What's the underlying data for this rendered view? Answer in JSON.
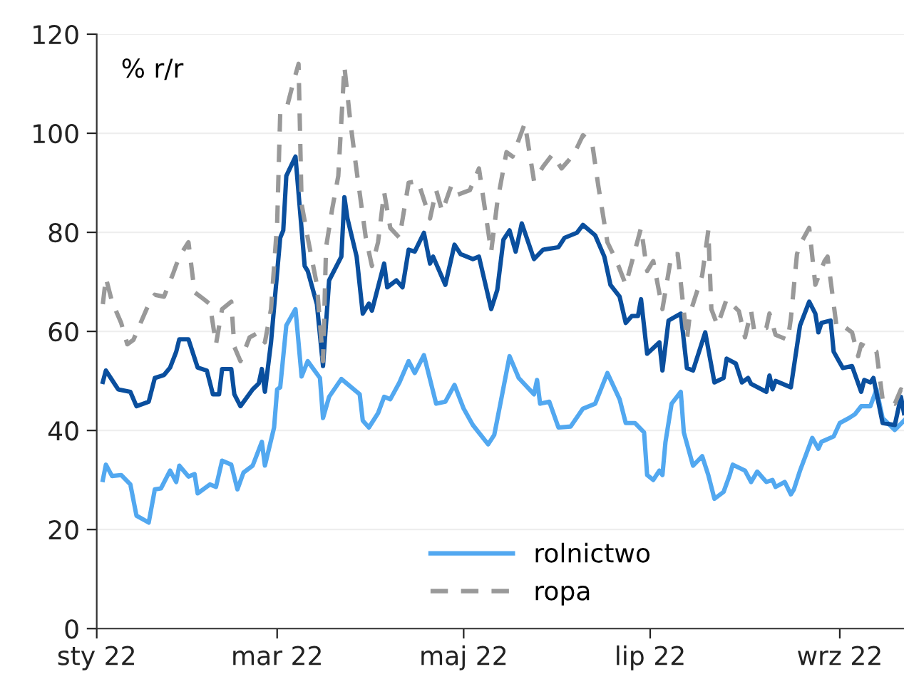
{
  "chart_data": {
    "type": "line",
    "ylabel": "% r/r",
    "xlim": [
      "2022-01-01",
      "2022-09-22"
    ],
    "ylim": [
      0,
      120
    ],
    "yticks": [
      0,
      20,
      40,
      60,
      80,
      100,
      120
    ],
    "xticks": [
      {
        "value": "2022-01-01",
        "label": "sty 22"
      },
      {
        "value": "2022-03-01",
        "label": "mar 22"
      },
      {
        "value": "2022-05-01",
        "label": "maj 22"
      },
      {
        "value": "2022-07-01",
        "label": "lip 22"
      },
      {
        "value": "2022-09-01",
        "label": "wrz 22"
      }
    ],
    "grid": "y",
    "legend": "bottom",
    "series": [
      {
        "name": "rolnictwo",
        "color": "#52a8f0",
        "line_style": "solid",
        "x": [
          "2022-01-03",
          "2022-01-04",
          "2022-01-06",
          "2022-01-09",
          "2022-01-12",
          "2022-01-14",
          "2022-01-18",
          "2022-01-20",
          "2022-01-22",
          "2022-01-25",
          "2022-01-27",
          "2022-01-28",
          "2022-01-31",
          "2022-02-02",
          "2022-02-03",
          "2022-02-07",
          "2022-02-09",
          "2022-02-11",
          "2022-02-14",
          "2022-02-16",
          "2022-02-18",
          "2022-02-21",
          "2022-02-24",
          "2022-02-25",
          "2022-02-28",
          "2022-03-01",
          "2022-03-02",
          "2022-03-04",
          "2022-03-07",
          "2022-03-09",
          "2022-03-11",
          "2022-03-15",
          "2022-03-16",
          "2022-03-18",
          "2022-03-22",
          "2022-03-28",
          "2022-03-29",
          "2022-03-31",
          "2022-04-03",
          "2022-04-05",
          "2022-04-07",
          "2022-04-10",
          "2022-04-13",
          "2022-04-15",
          "2022-04-18",
          "2022-04-22",
          "2022-04-25",
          "2022-04-28",
          "2022-05-01",
          "2022-05-04",
          "2022-05-09",
          "2022-05-11",
          "2022-05-13",
          "2022-05-16",
          "2022-05-19",
          "2022-05-24",
          "2022-05-25",
          "2022-05-26",
          "2022-05-29",
          "2022-06-01",
          "2022-06-05",
          "2022-06-09",
          "2022-06-13",
          "2022-06-17",
          "2022-06-21",
          "2022-06-23",
          "2022-06-26",
          "2022-06-29",
          "2022-06-30",
          "2022-07-02",
          "2022-07-04",
          "2022-07-05",
          "2022-07-06",
          "2022-07-08",
          "2022-07-11",
          "2022-07-12",
          "2022-07-15",
          "2022-07-18",
          "2022-07-20",
          "2022-07-22",
          "2022-07-25",
          "2022-07-27",
          "2022-07-28",
          "2022-08-01",
          "2022-08-03",
          "2022-08-05",
          "2022-08-08",
          "2022-08-10",
          "2022-08-11",
          "2022-08-14",
          "2022-08-16",
          "2022-08-17",
          "2022-08-19",
          "2022-08-23",
          "2022-08-25",
          "2022-08-26",
          "2022-08-30",
          "2022-09-01",
          "2022-09-04",
          "2022-09-06",
          "2022-09-08",
          "2022-09-11",
          "2022-09-13",
          "2022-09-15",
          "2022-09-19",
          "2022-09-22"
        ],
        "values": [
          30.0,
          33.1,
          30.8,
          31.0,
          29.1,
          22.8,
          21.4,
          28.1,
          28.3,
          31.9,
          29.6,
          32.9,
          30.7,
          31.2,
          27.3,
          29.1,
          28.6,
          33.9,
          33.1,
          28.1,
          31.5,
          32.9,
          37.7,
          32.9,
          40.6,
          48.3,
          48.7,
          61.2,
          64.5,
          50.9,
          54.0,
          50.6,
          42.5,
          46.8,
          50.4,
          47.3,
          42.0,
          40.6,
          43.5,
          46.8,
          46.3,
          49.7,
          54.0,
          51.6,
          55.2,
          45.4,
          45.8,
          49.2,
          44.4,
          41.1,
          37.2,
          39.1,
          45.4,
          55.0,
          50.6,
          47.3,
          50.2,
          45.4,
          45.8,
          40.6,
          40.8,
          44.4,
          45.4,
          51.6,
          46.3,
          41.5,
          41.5,
          39.6,
          31.0,
          30.0,
          31.9,
          31.0,
          37.7,
          45.4,
          47.8,
          39.6,
          32.9,
          34.8,
          31.0,
          26.2,
          27.6,
          31.0,
          33.1,
          31.9,
          29.6,
          31.7,
          29.6,
          30.0,
          28.6,
          29.6,
          27.1,
          28.1,
          31.9,
          38.5,
          36.3,
          37.7,
          38.8,
          41.5,
          42.5,
          43.3,
          44.9,
          44.9,
          48.3,
          42.5,
          40.1,
          42.0
        ]
      },
      {
        "color": "#0a4f9e",
        "line_style": "solid",
        "x": [
          "2022-01-03",
          "2022-01-04",
          "2022-01-06",
          "2022-01-08",
          "2022-01-12",
          "2022-01-14",
          "2022-01-18",
          "2022-01-20",
          "2022-01-23",
          "2022-01-25",
          "2022-01-27",
          "2022-01-28",
          "2022-01-31",
          "2022-02-03",
          "2022-02-06",
          "2022-02-08",
          "2022-02-10",
          "2022-02-11",
          "2022-02-14",
          "2022-02-15",
          "2022-02-17",
          "2022-02-21",
          "2022-02-23",
          "2022-02-24",
          "2022-02-25",
          "2022-02-27",
          "2022-03-02",
          "2022-03-03",
          "2022-03-04",
          "2022-03-07",
          "2022-03-10",
          "2022-03-11",
          "2022-03-14",
          "2022-03-16",
          "2022-03-18",
          "2022-03-22",
          "2022-03-23",
          "2022-03-24",
          "2022-03-27",
          "2022-03-29",
          "2022-03-31",
          "2022-04-01",
          "2022-04-05",
          "2022-04-06",
          "2022-04-09",
          "2022-04-11",
          "2022-04-13",
          "2022-04-15",
          "2022-04-18",
          "2022-04-20",
          "2022-04-21",
          "2022-04-25",
          "2022-04-28",
          "2022-04-30",
          "2022-05-04",
          "2022-05-06",
          "2022-05-10",
          "2022-05-12",
          "2022-05-14",
          "2022-05-16",
          "2022-05-18",
          "2022-05-20",
          "2022-05-24",
          "2022-05-27",
          "2022-06-01",
          "2022-06-03",
          "2022-06-07",
          "2022-06-09",
          "2022-06-13",
          "2022-06-16",
          "2022-06-18",
          "2022-06-21",
          "2022-06-23",
          "2022-06-25",
          "2022-06-27",
          "2022-06-28",
          "2022-06-30",
          "2022-07-04",
          "2022-07-05",
          "2022-07-07",
          "2022-07-11",
          "2022-07-13",
          "2022-07-15",
          "2022-07-19",
          "2022-07-22",
          "2022-07-25",
          "2022-07-26",
          "2022-07-29",
          "2022-07-31",
          "2022-08-02",
          "2022-08-03",
          "2022-08-08",
          "2022-08-09",
          "2022-08-10",
          "2022-08-11",
          "2022-08-16",
          "2022-08-19",
          "2022-08-22",
          "2022-08-24",
          "2022-08-25",
          "2022-08-26",
          "2022-08-29",
          "2022-08-30",
          "2022-09-02",
          "2022-09-05",
          "2022-09-08",
          "2022-09-09",
          "2022-09-11",
          "2022-09-12",
          "2022-09-15",
          "2022-09-19",
          "2022-09-21",
          "2022-09-22"
        ],
        "values": [
          49.8,
          52.1,
          50.2,
          48.3,
          47.8,
          44.9,
          45.8,
          50.6,
          51.2,
          52.7,
          55.9,
          58.4,
          58.4,
          52.7,
          52.1,
          47.3,
          47.3,
          52.4,
          52.4,
          47.3,
          44.9,
          48.3,
          49.5,
          52.4,
          47.8,
          57.8,
          78.9,
          80.4,
          91.4,
          95.3,
          73.2,
          72.2,
          65.5,
          53.0,
          70.3,
          75.1,
          87.1,
          82.8,
          75.1,
          63.6,
          65.6,
          64.2,
          73.7,
          68.9,
          70.3,
          68.9,
          76.5,
          76.1,
          79.9,
          73.7,
          75.1,
          69.4,
          77.5,
          75.6,
          74.6,
          75.1,
          64.5,
          68.4,
          78.5,
          80.4,
          76.1,
          81.8,
          74.6,
          76.5,
          77.0,
          78.9,
          79.9,
          81.5,
          79.4,
          75.1,
          69.4,
          67.0,
          61.7,
          63.1,
          63.1,
          66.5,
          55.5,
          57.8,
          52.1,
          62.2,
          63.6,
          52.6,
          52.1,
          59.8,
          49.7,
          50.6,
          54.5,
          53.5,
          49.7,
          50.6,
          49.4,
          47.8,
          51.1,
          48.3,
          50.0,
          48.7,
          61.2,
          66.0,
          63.6,
          59.8,
          61.7,
          62.2,
          55.9,
          52.6,
          53.0,
          47.8,
          50.2,
          49.7,
          50.6,
          41.5,
          41.1,
          46.8,
          43.5
        ]
      },
      {
        "name": "ropa",
        "color": "#999999",
        "line_style": "dashed",
        "x": [
          "2022-01-03",
          "2022-01-04",
          "2022-01-06",
          "2022-01-09",
          "2022-01-11",
          "2022-01-13",
          "2022-01-15",
          "2022-01-18",
          "2022-01-20",
          "2022-01-23",
          "2022-01-26",
          "2022-01-28",
          "2022-01-31",
          "2022-02-02",
          "2022-02-05",
          "2022-02-07",
          "2022-02-09",
          "2022-02-11",
          "2022-02-14",
          "2022-02-15",
          "2022-02-17",
          "2022-02-20",
          "2022-02-23",
          "2022-02-25",
          "2022-02-27",
          "2022-03-01",
          "2022-03-02",
          "2022-03-04",
          "2022-03-06",
          "2022-03-08",
          "2022-03-09",
          "2022-03-11",
          "2022-03-14",
          "2022-03-16",
          "2022-03-17",
          "2022-03-19",
          "2022-03-21",
          "2022-03-23",
          "2022-03-25",
          "2022-03-27",
          "2022-03-30",
          "2022-04-01",
          "2022-04-03",
          "2022-04-05",
          "2022-04-07",
          "2022-04-10",
          "2022-04-13",
          "2022-04-16",
          "2022-04-20",
          "2022-04-22",
          "2022-04-24",
          "2022-04-27",
          "2022-04-29",
          "2022-05-03",
          "2022-05-06",
          "2022-05-10",
          "2022-05-12",
          "2022-05-15",
          "2022-05-17",
          "2022-05-21",
          "2022-05-24",
          "2022-05-27",
          "2022-05-30",
          "2022-06-02",
          "2022-06-06",
          "2022-06-09",
          "2022-06-12",
          "2022-06-14",
          "2022-06-17",
          "2022-06-20",
          "2022-06-23",
          "2022-06-28",
          "2022-06-30",
          "2022-07-02",
          "2022-07-05",
          "2022-07-08",
          "2022-07-10",
          "2022-07-13",
          "2022-07-14",
          "2022-07-18",
          "2022-07-20",
          "2022-07-21",
          "2022-07-23",
          "2022-07-26",
          "2022-07-30",
          "2022-08-01",
          "2022-08-03",
          "2022-08-04",
          "2022-08-08",
          "2022-08-09",
          "2022-08-11",
          "2022-08-15",
          "2022-08-16",
          "2022-08-18",
          "2022-08-19",
          "2022-08-22",
          "2022-08-24",
          "2022-08-27",
          "2022-08-28",
          "2022-08-31",
          "2022-09-03",
          "2022-09-05",
          "2022-09-07",
          "2022-09-08",
          "2022-09-11",
          "2022-09-13",
          "2022-09-15",
          "2022-09-19",
          "2022-09-21",
          "2022-09-22"
        ],
        "values": [
          65.5,
          70.8,
          66.0,
          61.7,
          57.4,
          58.3,
          61.2,
          65.5,
          67.4,
          67.0,
          71.7,
          75.1,
          78.0,
          67.9,
          66.5,
          65.5,
          57.4,
          64.5,
          66.0,
          56.9,
          54.0,
          58.8,
          59.8,
          57.8,
          64.5,
          81.8,
          103.9,
          104.8,
          109.6,
          114.0,
          85.7,
          78.9,
          69.4,
          54.0,
          77.0,
          84.7,
          91.4,
          113.5,
          102.0,
          92.4,
          78.9,
          73.2,
          78.0,
          88.1,
          80.9,
          78.9,
          90.0,
          90.4,
          82.8,
          88.5,
          84.2,
          89.5,
          87.6,
          88.5,
          92.9,
          76.1,
          86.1,
          96.2,
          95.3,
          102.0,
          90.4,
          93.3,
          95.7,
          92.9,
          95.7,
          99.6,
          98.1,
          89.5,
          78.0,
          74.2,
          69.4,
          80.9,
          72.2,
          74.2,
          64.5,
          75.6,
          75.6,
          58.3,
          63.6,
          71.3,
          80.4,
          64.5,
          61.2,
          66.5,
          64.1,
          58.8,
          64.1,
          60.2,
          60.7,
          63.6,
          59.3,
          58.3,
          62.6,
          75.6,
          77.5,
          80.9,
          69.4,
          74.2,
          75.1,
          60.7,
          60.7,
          59.8,
          55.0,
          57.4,
          56.4,
          55.9,
          46.3,
          45.4,
          48.3,
          47.8
        ]
      }
    ]
  }
}
